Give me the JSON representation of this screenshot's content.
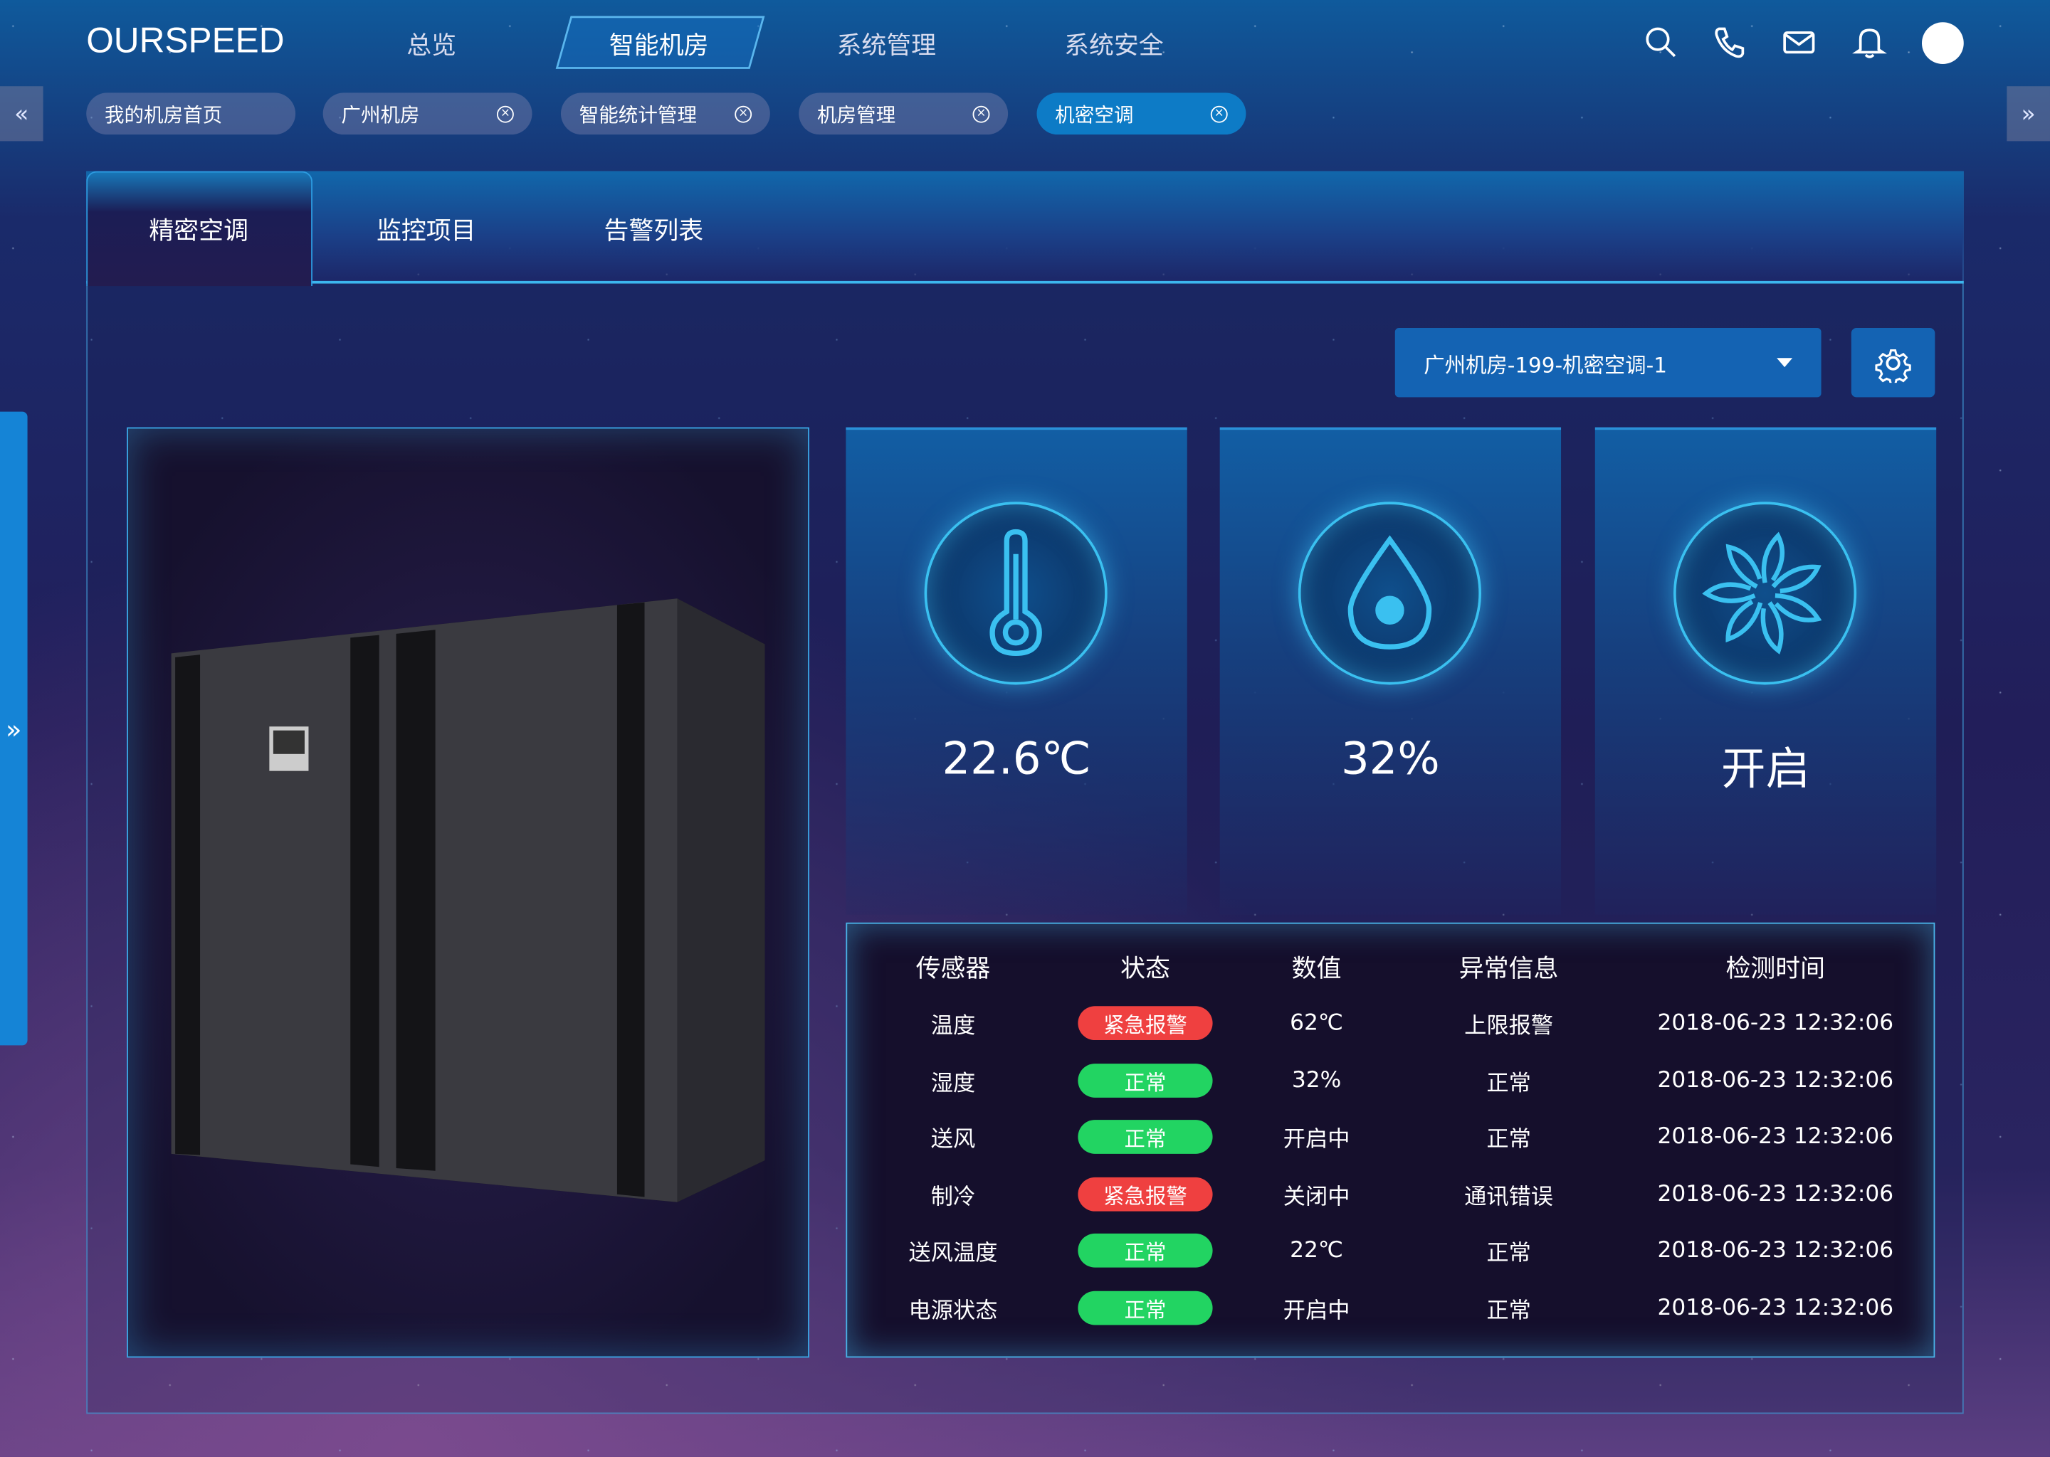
{
  "header": {
    "logo": "OURSPEED",
    "nav": [
      {
        "label": "总览"
      },
      {
        "label": "智能机房",
        "active": true
      },
      {
        "label": "系统管理"
      },
      {
        "label": "系统安全"
      }
    ],
    "icons": [
      "search-icon",
      "phone-icon",
      "mail-icon",
      "bell-icon",
      "avatar"
    ]
  },
  "tabs_bar": {
    "prev": "«",
    "next": "»",
    "items": [
      {
        "label": "我的机房首页",
        "closable": false
      },
      {
        "label": "广州机房",
        "closable": true
      },
      {
        "label": "智能统计管理",
        "closable": true
      },
      {
        "label": "机房管理",
        "closable": true
      },
      {
        "label": "机密空调",
        "closable": true,
        "active": true
      }
    ],
    "close_glyph": "×"
  },
  "sidebar": {
    "toggle": "»"
  },
  "main": {
    "tabs": [
      {
        "label": "精密空调",
        "active": true
      },
      {
        "label": "监控项目"
      },
      {
        "label": "告警列表"
      }
    ],
    "device_select": {
      "value": "广州机房-199-机密空调-1"
    },
    "cards": [
      {
        "icon": "thermometer-icon",
        "value": "22.6℃"
      },
      {
        "icon": "water-drop-icon",
        "value": "32%"
      },
      {
        "icon": "fan-icon",
        "value": "开启"
      }
    ],
    "table": {
      "headers": [
        "传感器",
        "状态",
        "数值",
        "异常信息",
        "检测时间"
      ],
      "rows": [
        {
          "sensor": "温度",
          "status": "紧急报警",
          "level": "alarm",
          "value": "62℃",
          "info": "上限报警",
          "time": "2018-06-23  12:32:06"
        },
        {
          "sensor": "湿度",
          "status": "正常",
          "level": "normal",
          "value": "32%",
          "info": "正常",
          "time": "2018-06-23  12:32:06"
        },
        {
          "sensor": "送风",
          "status": "正常",
          "level": "normal",
          "value": "开启中",
          "info": "正常",
          "time": "2018-06-23  12:32:06"
        },
        {
          "sensor": "制冷",
          "status": "紧急报警",
          "level": "alarm",
          "value": "关闭中",
          "info": "通讯错误",
          "time": "2018-06-23  12:32:06"
        },
        {
          "sensor": "送风温度",
          "status": "正常",
          "level": "normal",
          "value": "22℃",
          "info": "正常",
          "time": "2018-06-23  12:32:06"
        },
        {
          "sensor": "电源状态",
          "status": "正常",
          "level": "normal",
          "value": "开启中",
          "info": "正常",
          "time": "2018-06-23  12:32:06"
        }
      ]
    }
  },
  "colors": {
    "alarm": "#ef4040",
    "normal": "#22d462",
    "accent": "#0d7bc6",
    "glow": "#3ac0f0"
  }
}
